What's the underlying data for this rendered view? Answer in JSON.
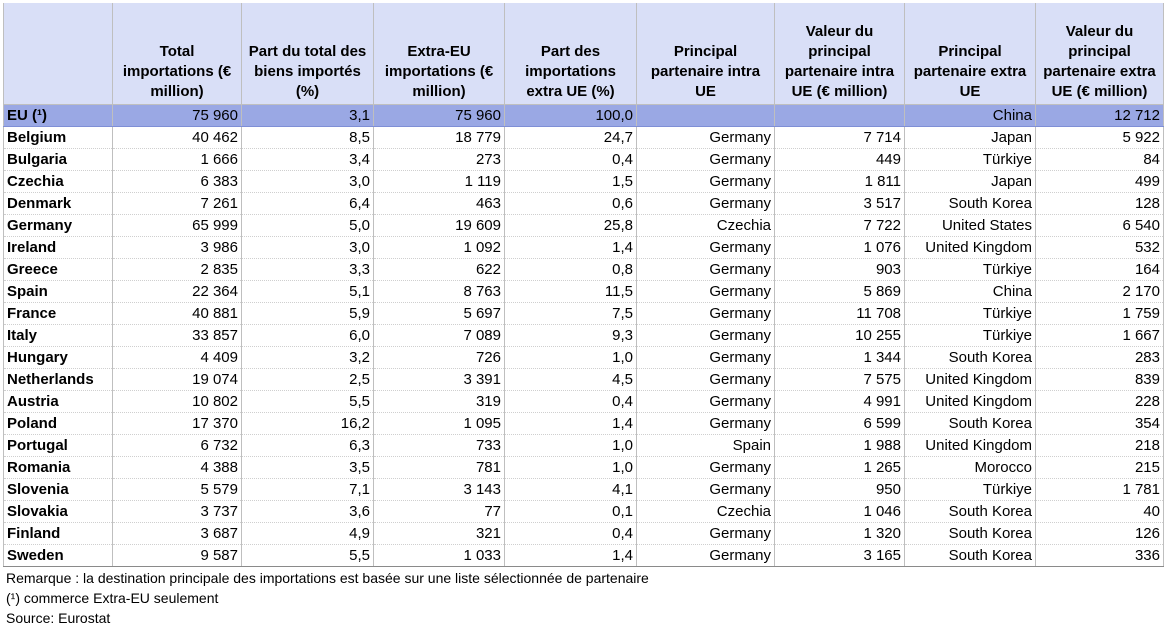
{
  "headers": [
    "",
    "Total importations (€ million)",
    "Part du total des biens importés (%)",
    "Extra-EU importations (€ million)",
    "Part des importations extra UE (%)",
    "Principal partenaire intra UE",
    "Valeur du principal partenaire intra UE (€ million)",
    "Principal partenaire extra UE",
    "Valeur du principal partenaire extra UE (€ million)"
  ],
  "rows": [
    {
      "name": "EU (¹)",
      "total": "75 960",
      "share": "3,1",
      "extra": "75 960",
      "extra_share": "100,0",
      "intra_partner": "",
      "intra_value": "",
      "extra_partner": "China",
      "extra_value": "12 712"
    },
    {
      "name": "Belgium",
      "total": "40 462",
      "share": "8,5",
      "extra": "18 779",
      "extra_share": "24,7",
      "intra_partner": "Germany",
      "intra_value": "7 714",
      "extra_partner": "Japan",
      "extra_value": "5 922"
    },
    {
      "name": "Bulgaria",
      "total": "1 666",
      "share": "3,4",
      "extra": "273",
      "extra_share": "0,4",
      "intra_partner": "Germany",
      "intra_value": "449",
      "extra_partner": "Türkiye",
      "extra_value": "84"
    },
    {
      "name": "Czechia",
      "total": "6 383",
      "share": "3,0",
      "extra": "1 119",
      "extra_share": "1,5",
      "intra_partner": "Germany",
      "intra_value": "1 811",
      "extra_partner": "Japan",
      "extra_value": "499"
    },
    {
      "name": "Denmark",
      "total": "7 261",
      "share": "6,4",
      "extra": "463",
      "extra_share": "0,6",
      "intra_partner": "Germany",
      "intra_value": "3 517",
      "extra_partner": "South Korea",
      "extra_value": "128"
    },
    {
      "name": "Germany",
      "total": "65 999",
      "share": "5,0",
      "extra": "19 609",
      "extra_share": "25,8",
      "intra_partner": "Czechia",
      "intra_value": "7 722",
      "extra_partner": "United States",
      "extra_value": "6 540"
    },
    {
      "name": "Ireland",
      "total": "3 986",
      "share": "3,0",
      "extra": "1 092",
      "extra_share": "1,4",
      "intra_partner": "Germany",
      "intra_value": "1 076",
      "extra_partner": "United Kingdom",
      "extra_value": "532"
    },
    {
      "name": "Greece",
      "total": "2 835",
      "share": "3,3",
      "extra": "622",
      "extra_share": "0,8",
      "intra_partner": "Germany",
      "intra_value": "903",
      "extra_partner": "Türkiye",
      "extra_value": "164"
    },
    {
      "name": "Spain",
      "total": "22 364",
      "share": "5,1",
      "extra": "8 763",
      "extra_share": "11,5",
      "intra_partner": "Germany",
      "intra_value": "5 869",
      "extra_partner": "China",
      "extra_value": "2 170"
    },
    {
      "name": "France",
      "total": "40 881",
      "share": "5,9",
      "extra": "5 697",
      "extra_share": "7,5",
      "intra_partner": "Germany",
      "intra_value": "11 708",
      "extra_partner": "Türkiye",
      "extra_value": "1 759"
    },
    {
      "name": "Italy",
      "total": "33 857",
      "share": "6,0",
      "extra": "7 089",
      "extra_share": "9,3",
      "intra_partner": "Germany",
      "intra_value": "10 255",
      "extra_partner": "Türkiye",
      "extra_value": "1 667"
    },
    {
      "name": "Hungary",
      "total": "4 409",
      "share": "3,2",
      "extra": "726",
      "extra_share": "1,0",
      "intra_partner": "Germany",
      "intra_value": "1 344",
      "extra_partner": "South Korea",
      "extra_value": "283"
    },
    {
      "name": "Netherlands",
      "total": "19 074",
      "share": "2,5",
      "extra": "3 391",
      "extra_share": "4,5",
      "intra_partner": "Germany",
      "intra_value": "7 575",
      "extra_partner": "United Kingdom",
      "extra_value": "839"
    },
    {
      "name": "Austria",
      "total": "10 802",
      "share": "5,5",
      "extra": "319",
      "extra_share": "0,4",
      "intra_partner": "Germany",
      "intra_value": "4 991",
      "extra_partner": "United Kingdom",
      "extra_value": "228"
    },
    {
      "name": "Poland",
      "total": "17 370",
      "share": "16,2",
      "extra": "1 095",
      "extra_share": "1,4",
      "intra_partner": "Germany",
      "intra_value": "6 599",
      "extra_partner": "South Korea",
      "extra_value": "354"
    },
    {
      "name": "Portugal",
      "total": "6 732",
      "share": "6,3",
      "extra": "733",
      "extra_share": "1,0",
      "intra_partner": "Spain",
      "intra_value": "1 988",
      "extra_partner": "United Kingdom",
      "extra_value": "218"
    },
    {
      "name": "Romania",
      "total": "4 388",
      "share": "3,5",
      "extra": "781",
      "extra_share": "1,0",
      "intra_partner": "Germany",
      "intra_value": "1 265",
      "extra_partner": "Morocco",
      "extra_value": "215"
    },
    {
      "name": "Slovenia",
      "total": "5 579",
      "share": "7,1",
      "extra": "3 143",
      "extra_share": "4,1",
      "intra_partner": "Germany",
      "intra_value": "950",
      "extra_partner": "Türkiye",
      "extra_value": "1 781"
    },
    {
      "name": "Slovakia",
      "total": "3 737",
      "share": "3,6",
      "extra": "77",
      "extra_share": "0,1",
      "intra_partner": "Czechia",
      "intra_value": "1 046",
      "extra_partner": "South Korea",
      "extra_value": "40"
    },
    {
      "name": "Finland",
      "total": "3 687",
      "share": "4,9",
      "extra": "321",
      "extra_share": "0,4",
      "intra_partner": "Germany",
      "intra_value": "1 320",
      "extra_partner": "South Korea",
      "extra_value": "126"
    },
    {
      "name": "Sweden",
      "total": "9 587",
      "share": "5,5",
      "extra": "1 033",
      "extra_share": "1,4",
      "intra_partner": "Germany",
      "intra_value": "3 165",
      "extra_partner": "South Korea",
      "extra_value": "336"
    }
  ],
  "footer": {
    "note": "Remarque : la destination principale des importations est basée sur une liste sélectionnée de partenaire",
    "footnote": "(¹) commerce Extra-EU seulement",
    "source": "Source: Eurostat"
  },
  "colors": {
    "header_bg": "#d9dff7",
    "eu_row_bg": "#9aa8e4",
    "grid": "#bfbfbf"
  }
}
